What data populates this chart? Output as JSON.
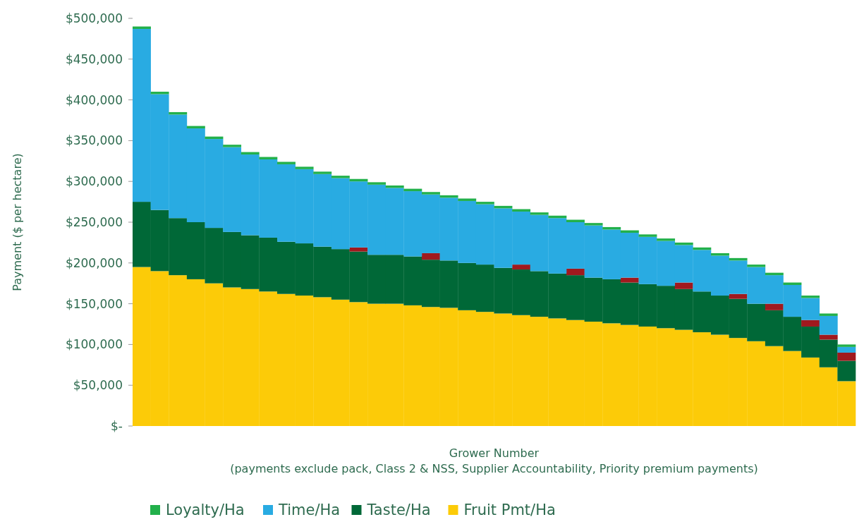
{
  "chart_data": {
    "type": "bar",
    "stacked": true,
    "ylabel": "Payment ($ per hectare)",
    "xlabel": "Grower Number\n(payments exclude pack, Class 2 & NSS, Supplier Accountability, Priority premium payments)",
    "categories": [
      null,
      null,
      null,
      null,
      null,
      null,
      null,
      null,
      null,
      null,
      null,
      null,
      null,
      null,
      null,
      null,
      null,
      null,
      null,
      null,
      null,
      null,
      null,
      null,
      null,
      null,
      null,
      null,
      null,
      null,
      null,
      null,
      null,
      null,
      null,
      null,
      null,
      null,
      null,
      null
    ],
    "series": [
      {
        "name": "Fruit Pmt/Ha",
        "color": "#fccb08",
        "values": [
          195000,
          190000,
          185000,
          180000,
          175000,
          170000,
          168000,
          165000,
          162000,
          160000,
          158000,
          155000,
          152000,
          150000,
          150000,
          148000,
          146000,
          145000,
          142000,
          140000,
          138000,
          136000,
          134000,
          132000,
          130000,
          128000,
          126000,
          124000,
          122000,
          120000,
          118000,
          115000,
          112000,
          108000,
          104000,
          98000,
          92000,
          84000,
          72000,
          55000
        ]
      },
      {
        "name": "Taste/Ha",
        "color": "#006837",
        "values": [
          80000,
          75000,
          70000,
          70000,
          68000,
          68000,
          66000,
          66000,
          64000,
          64000,
          62000,
          62000,
          62000,
          60000,
          60000,
          60000,
          58000,
          58000,
          58000,
          58000,
          56000,
          56000,
          56000,
          55000,
          55000,
          54000,
          54000,
          52000,
          52000,
          52000,
          50000,
          50000,
          48000,
          48000,
          46000,
          44000,
          42000,
          38000,
          34000,
          25000
        ]
      },
      {
        "color": "#a0191e",
        "values": [
          0,
          0,
          0,
          0,
          0,
          0,
          0,
          0,
          0,
          0,
          0,
          0,
          5000,
          0,
          0,
          0,
          8000,
          0,
          0,
          0,
          0,
          6000,
          0,
          0,
          8000,
          0,
          0,
          6000,
          0,
          0,
          8000,
          0,
          0,
          6000,
          0,
          8000,
          0,
          8000,
          6000,
          10000
        ]
      },
      {
        "name": "Time/Ha",
        "color": "#29abe2",
        "values": [
          212000,
          142000,
          127000,
          115000,
          109000,
          104000,
          99000,
          96000,
          95000,
          91000,
          89000,
          87000,
          81000,
          86000,
          82000,
          80000,
          72000,
          77000,
          76000,
          74000,
          73000,
          65000,
          69000,
          68000,
          57000,
          64000,
          61000,
          55000,
          58000,
          55000,
          46000,
          51000,
          49000,
          41000,
          45000,
          35000,
          39000,
          27000,
          23000,
          7000
        ]
      },
      {
        "name": "Loyalty/Ha",
        "color": "#22b04b",
        "values": [
          3000,
          3000,
          3000,
          3000,
          3000,
          3000,
          3000,
          3000,
          3000,
          3000,
          3000,
          3000,
          3000,
          3000,
          3000,
          3000,
          3000,
          3000,
          3000,
          3000,
          3000,
          3000,
          3000,
          3000,
          3000,
          3000,
          3000,
          3000,
          3000,
          3000,
          3000,
          3000,
          3000,
          3000,
          3000,
          3000,
          3000,
          3000,
          3000,
          3000
        ]
      }
    ],
    "ylim": [
      0,
      500000
    ],
    "yticks": [
      {
        "value": 0,
        "label": "$-"
      },
      {
        "value": 50000,
        "label": "$50,000"
      },
      {
        "value": 100000,
        "label": "$100,000"
      },
      {
        "value": 150000,
        "label": "$150,000"
      },
      {
        "value": 200000,
        "label": "$200,000"
      },
      {
        "value": 250000,
        "label": "$250,000"
      },
      {
        "value": 300000,
        "label": "$300,000"
      },
      {
        "value": 350000,
        "label": "$350,000"
      },
      {
        "value": 400000,
        "label": "$400,000"
      },
      {
        "value": 450000,
        "label": "$450,000"
      },
      {
        "value": 500000,
        "label": "$500,000"
      }
    ],
    "legend": "bottom"
  }
}
